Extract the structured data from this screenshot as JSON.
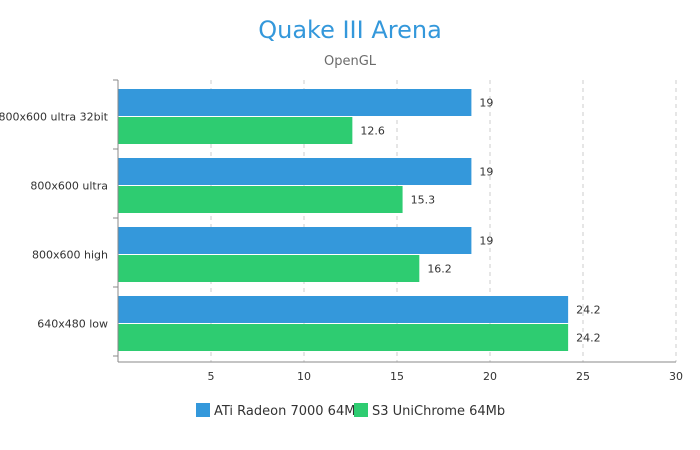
{
  "chart_data": {
    "type": "bar",
    "orientation": "horizontal",
    "title": "Quake III Arena",
    "subtitle": "OpenGL",
    "categories": [
      "800x600 ultra 32bit",
      "800x600 ultra",
      "800x600 high",
      "640x480 low"
    ],
    "series": [
      {
        "name": "ATi Radeon 7000 64Mb",
        "color": "#3498db",
        "values": [
          19,
          19,
          19,
          24.2
        ]
      },
      {
        "name": "S3 UniChrome 64Mb",
        "color": "#2ecc71",
        "values": [
          12.6,
          15.3,
          16.2,
          24.2
        ]
      }
    ],
    "xlim": [
      0,
      30
    ],
    "x_ticks": [
      5,
      10,
      15,
      20,
      25,
      30
    ],
    "grid": "vertical-dashed",
    "legend_position": "bottom"
  },
  "colors": {
    "title": "#3498db",
    "axis": "#888888",
    "grid": "#cccccc"
  }
}
